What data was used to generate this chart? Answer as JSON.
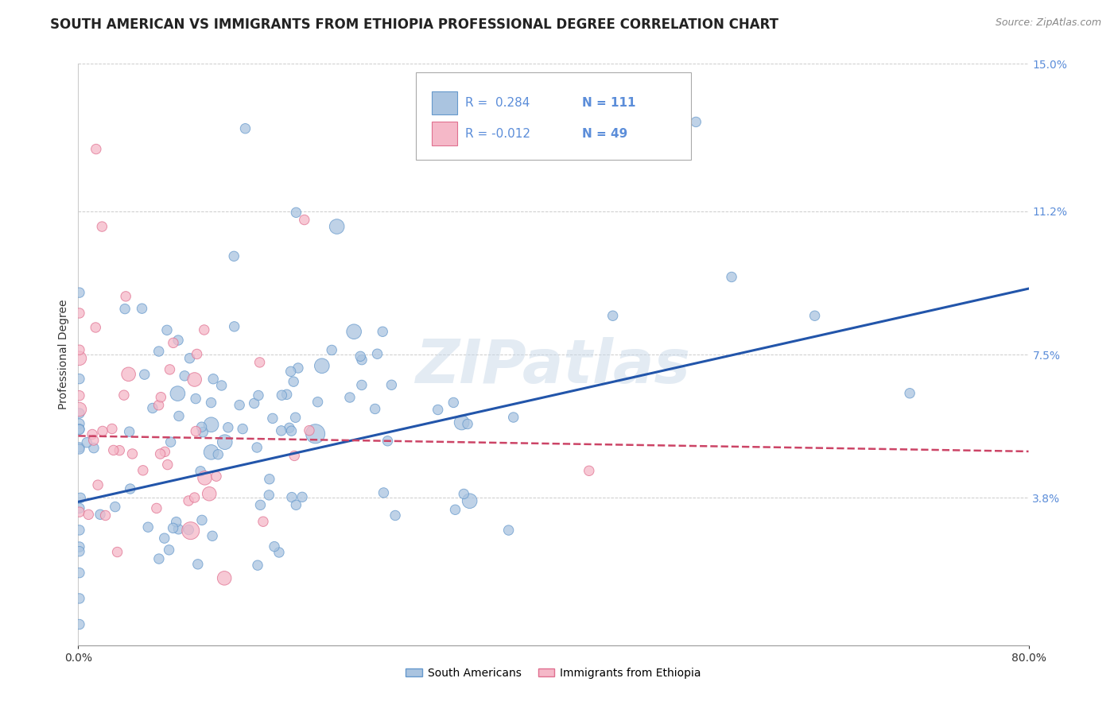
{
  "title": "SOUTH AMERICAN VS IMMIGRANTS FROM ETHIOPIA PROFESSIONAL DEGREE CORRELATION CHART",
  "source": "Source: ZipAtlas.com",
  "ylabel": "Professional Degree",
  "xlabel": "",
  "xlim": [
    0,
    0.8
  ],
  "ylim": [
    0,
    0.15
  ],
  "xticks": [
    0.0,
    0.8
  ],
  "xticklabels": [
    "0.0%",
    "80.0%"
  ],
  "ytick_vals": [
    0.0,
    0.038,
    0.075,
    0.112,
    0.15
  ],
  "ytick_labels": [
    "",
    "3.8%",
    "7.5%",
    "11.2%",
    "15.0%"
  ],
  "gridcolor": "#cccccc",
  "background": "#ffffff",
  "blue_color": "#aac4e0",
  "blue_edge_color": "#6699cc",
  "pink_color": "#f5b8c8",
  "pink_edge_color": "#e07090",
  "blue_line_color": "#2255aa",
  "pink_line_color": "#cc4466",
  "legend_R1": "R =  0.284",
  "legend_N1": "N = 111",
  "legend_R2": "R = -0.012",
  "legend_N2": "N = 49",
  "label1": "South Americans",
  "label2": "Immigrants from Ethiopia",
  "watermark": "ZIPatlas",
  "title_fontsize": 12,
  "axis_label_fontsize": 10,
  "tick_fontsize": 10,
  "source_fontsize": 9,
  "blue_trend_x0": 0.0,
  "blue_trend_y0": 0.037,
  "blue_trend_x1": 0.8,
  "blue_trend_y1": 0.092,
  "pink_trend_x0": 0.0,
  "pink_trend_y0": 0.054,
  "pink_trend_x1": 0.8,
  "pink_trend_y1": 0.05
}
